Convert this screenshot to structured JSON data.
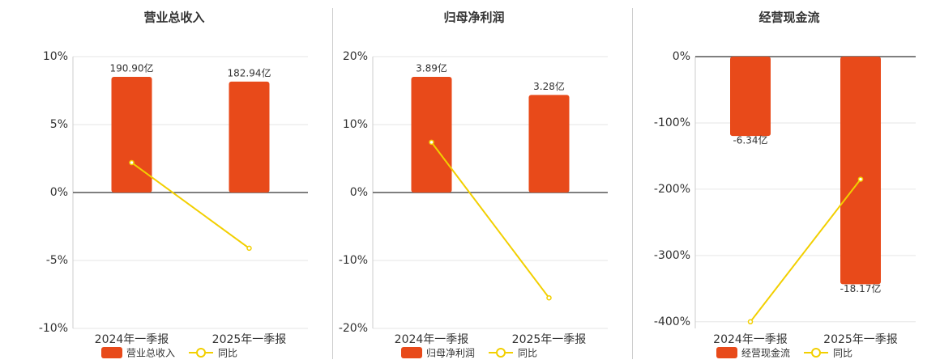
{
  "chart_data": [
    {
      "type": "bar",
      "title": "营业总收入",
      "categories": [
        "2024年一季报",
        "2025年一季报"
      ],
      "series": [
        {
          "name": "营业总收入",
          "color": "#e84a1a",
          "values": [
            190.9,
            182.94
          ],
          "value_labels": [
            "190.90亿",
            "182.94亿"
          ],
          "axis": "y2"
        },
        {
          "name": "同比",
          "color": "#f2cf00",
          "type": "line",
          "values": [
            2.2,
            -4.1
          ]
        }
      ],
      "ylim": [
        -10,
        10
      ],
      "yticks": [
        {
          "value": -10,
          "label": "-10%"
        },
        {
          "value": -5,
          "label": "-5%"
        },
        {
          "value": 0,
          "label": "0%"
        },
        {
          "value": 5,
          "label": "5%"
        },
        {
          "value": 10,
          "label": "10%"
        }
      ],
      "y2lim": [
        -224.2,
        224.2
      ],
      "grid": true
    },
    {
      "type": "bar",
      "title": "归母净利润",
      "categories": [
        "2024年一季报",
        "2025年一季报"
      ],
      "series": [
        {
          "name": "归母净利润",
          "color": "#e84a1a",
          "values": [
            3.89,
            3.28
          ],
          "value_labels": [
            "3.89亿",
            "3.28亿"
          ],
          "axis": "y2"
        },
        {
          "name": "同比",
          "color": "#f2cf00",
          "type": "line",
          "values": [
            7.4,
            -15.5
          ]
        }
      ],
      "ylim": [
        -20,
        20
      ],
      "yticks": [
        {
          "value": -20,
          "label": "-20%"
        },
        {
          "value": -10,
          "label": "-10%"
        },
        {
          "value": 0,
          "label": "0%"
        },
        {
          "value": 10,
          "label": "10%"
        },
        {
          "value": 20,
          "label": "20%"
        }
      ],
      "y2lim": [
        -4.57,
        4.57
      ],
      "grid": true
    },
    {
      "type": "bar",
      "title": "经营现金流",
      "categories": [
        "2024年一季报",
        "2025年一季报"
      ],
      "series": [
        {
          "name": "经营现金流",
          "color": "#e84a1a",
          "values": [
            -6.34,
            -18.17
          ],
          "value_labels": [
            "-6.34亿",
            "-18.17亿"
          ],
          "axis": "y2"
        },
        {
          "name": "同比",
          "color": "#f2cf00",
          "type": "line",
          "values": [
            -400,
            -185
          ]
        }
      ],
      "ylim": [
        -410,
        0
      ],
      "yticks": [
        {
          "value": -400,
          "label": "-400%"
        },
        {
          "value": -300,
          "label": "-300%"
        },
        {
          "value": -200,
          "label": "-200%"
        },
        {
          "value": -100,
          "label": "-100%"
        },
        {
          "value": 0,
          "label": "0%"
        }
      ],
      "y2lim": [
        -21.7,
        0
      ],
      "grid": true
    }
  ]
}
